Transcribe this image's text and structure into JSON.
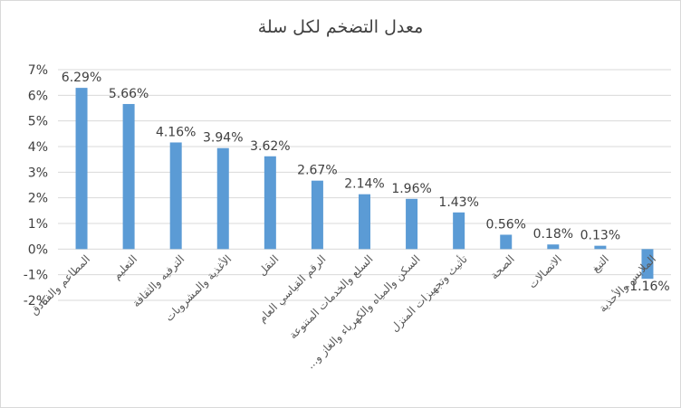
{
  "chart_data": {
    "type": "bar",
    "title": "معدل التضخم لكل سلة",
    "categories": [
      "المطاعم والفنادق",
      "التعليم",
      "الترفيه والثقافة",
      "الأغذية والمشروبات",
      "النقل",
      "الرقم القياسي العام",
      "السلع والخدمات المتنوعة",
      "السكن والمياه والكهرباء والغاز و...",
      "تأثيث وتجهيزات المنزل",
      "الصحة",
      "الاتصالات",
      "التبغ",
      "الملابس والأحذية"
    ],
    "values": [
      6.29,
      5.66,
      4.16,
      3.94,
      3.62,
      2.67,
      2.14,
      1.96,
      1.43,
      0.56,
      0.18,
      0.13,
      -1.16
    ],
    "data_labels": [
      "6.29%",
      "5.66%",
      "4.16%",
      "3.94%",
      "3.62%",
      "2.67%",
      "2.14%",
      "1.96%",
      "1.43%",
      "0.56%",
      "0.18%",
      "0.13%",
      "-1.16%"
    ],
    "y_ticks": [
      -2,
      -1,
      0,
      1,
      2,
      3,
      4,
      5,
      6,
      7
    ],
    "y_tick_labels": [
      "-2%",
      "-1%",
      "0%",
      "1%",
      "2%",
      "3%",
      "4%",
      "5%",
      "6%",
      "7%"
    ],
    "ylim": [
      -2,
      7
    ],
    "xlabel": "",
    "ylabel": "",
    "grid": true,
    "legend": "none",
    "bar_color": "#5b9bd5",
    "grid_color": "#d9d9d9",
    "text_color": "#404040",
    "label_color": "#595959"
  }
}
